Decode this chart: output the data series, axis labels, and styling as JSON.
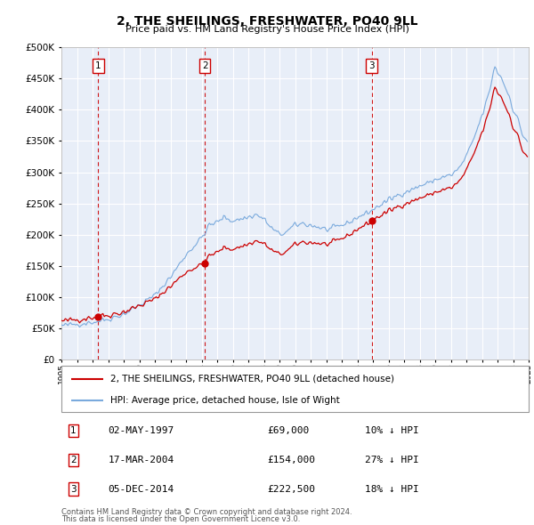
{
  "title": "2, THE SHEILINGS, FRESHWATER, PO40 9LL",
  "subtitle": "Price paid vs. HM Land Registry's House Price Index (HPI)",
  "legend_label_red": "2, THE SHEILINGS, FRESHWATER, PO40 9LL (detached house)",
  "legend_label_blue": "HPI: Average price, detached house, Isle of Wight",
  "footer_line1": "Contains HM Land Registry data © Crown copyright and database right 2024.",
  "footer_line2": "This data is licensed under the Open Government Licence v3.0.",
  "transactions": [
    {
      "num": 1,
      "date": "02-MAY-1997",
      "price": 69000,
      "hpi_note": "10% ↓ HPI",
      "year": 1997.37
    },
    {
      "num": 2,
      "date": "17-MAR-2004",
      "price": 154000,
      "hpi_note": "27% ↓ HPI",
      "year": 2004.21
    },
    {
      "num": 3,
      "date": "05-DEC-2014",
      "price": 222500,
      "hpi_note": "18% ↓ HPI",
      "year": 2014.92
    }
  ],
  "color_red": "#cc0000",
  "color_blue": "#7aaadd",
  "color_dashed_red": "#cc0000",
  "chart_bg": "#e8eef8",
  "ylim": [
    0,
    500000
  ],
  "xlim": [
    1995.0,
    2025.0
  ],
  "yticks": [
    0,
    50000,
    100000,
    150000,
    200000,
    250000,
    300000,
    350000,
    400000,
    450000,
    500000
  ],
  "xticks": [
    1995,
    1996,
    1997,
    1998,
    1999,
    2000,
    2001,
    2002,
    2003,
    2004,
    2005,
    2006,
    2007,
    2008,
    2009,
    2010,
    2011,
    2012,
    2013,
    2014,
    2015,
    2016,
    2017,
    2018,
    2019,
    2020,
    2021,
    2022,
    2023,
    2024,
    2025
  ],
  "background_color": "#ffffff",
  "grid_color": "#ffffff"
}
